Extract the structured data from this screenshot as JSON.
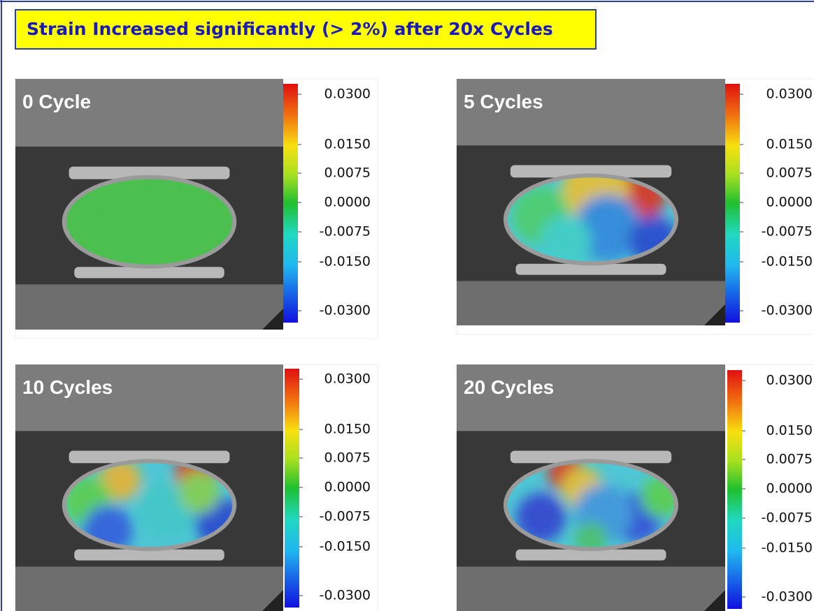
{
  "title": "Strain Increased significantly (> 2%) after 20x Cycles",
  "panels": [
    {
      "label": "0 Cycle",
      "colorbar": {
        "ticks": [
          "0.0300",
          "0.0150",
          "0.0075",
          "0.0000",
          "-0.0075",
          "-0.0150",
          "-0.0300"
        ]
      }
    },
    {
      "label": "5 Cycles",
      "colorbar": {
        "ticks": [
          "0.0300",
          "0.0150",
          "0.0075",
          "0.0000",
          "-0.0075",
          "-0.0150",
          "-0.0300"
        ]
      }
    },
    {
      "label": "10 Cycles",
      "colorbar": {
        "ticks": [
          "0.0300",
          "0.0150",
          "0.0075",
          "0.0000",
          "-0.0075",
          "-0.0150",
          "-0.0300"
        ]
      }
    },
    {
      "label": "20 Cycles",
      "colorbar": {
        "ticks": [
          "0.0300",
          "0.0150",
          "0.0075",
          "0.0000",
          "-0.0075",
          "-0.0150",
          "-0.0300"
        ]
      }
    }
  ]
}
